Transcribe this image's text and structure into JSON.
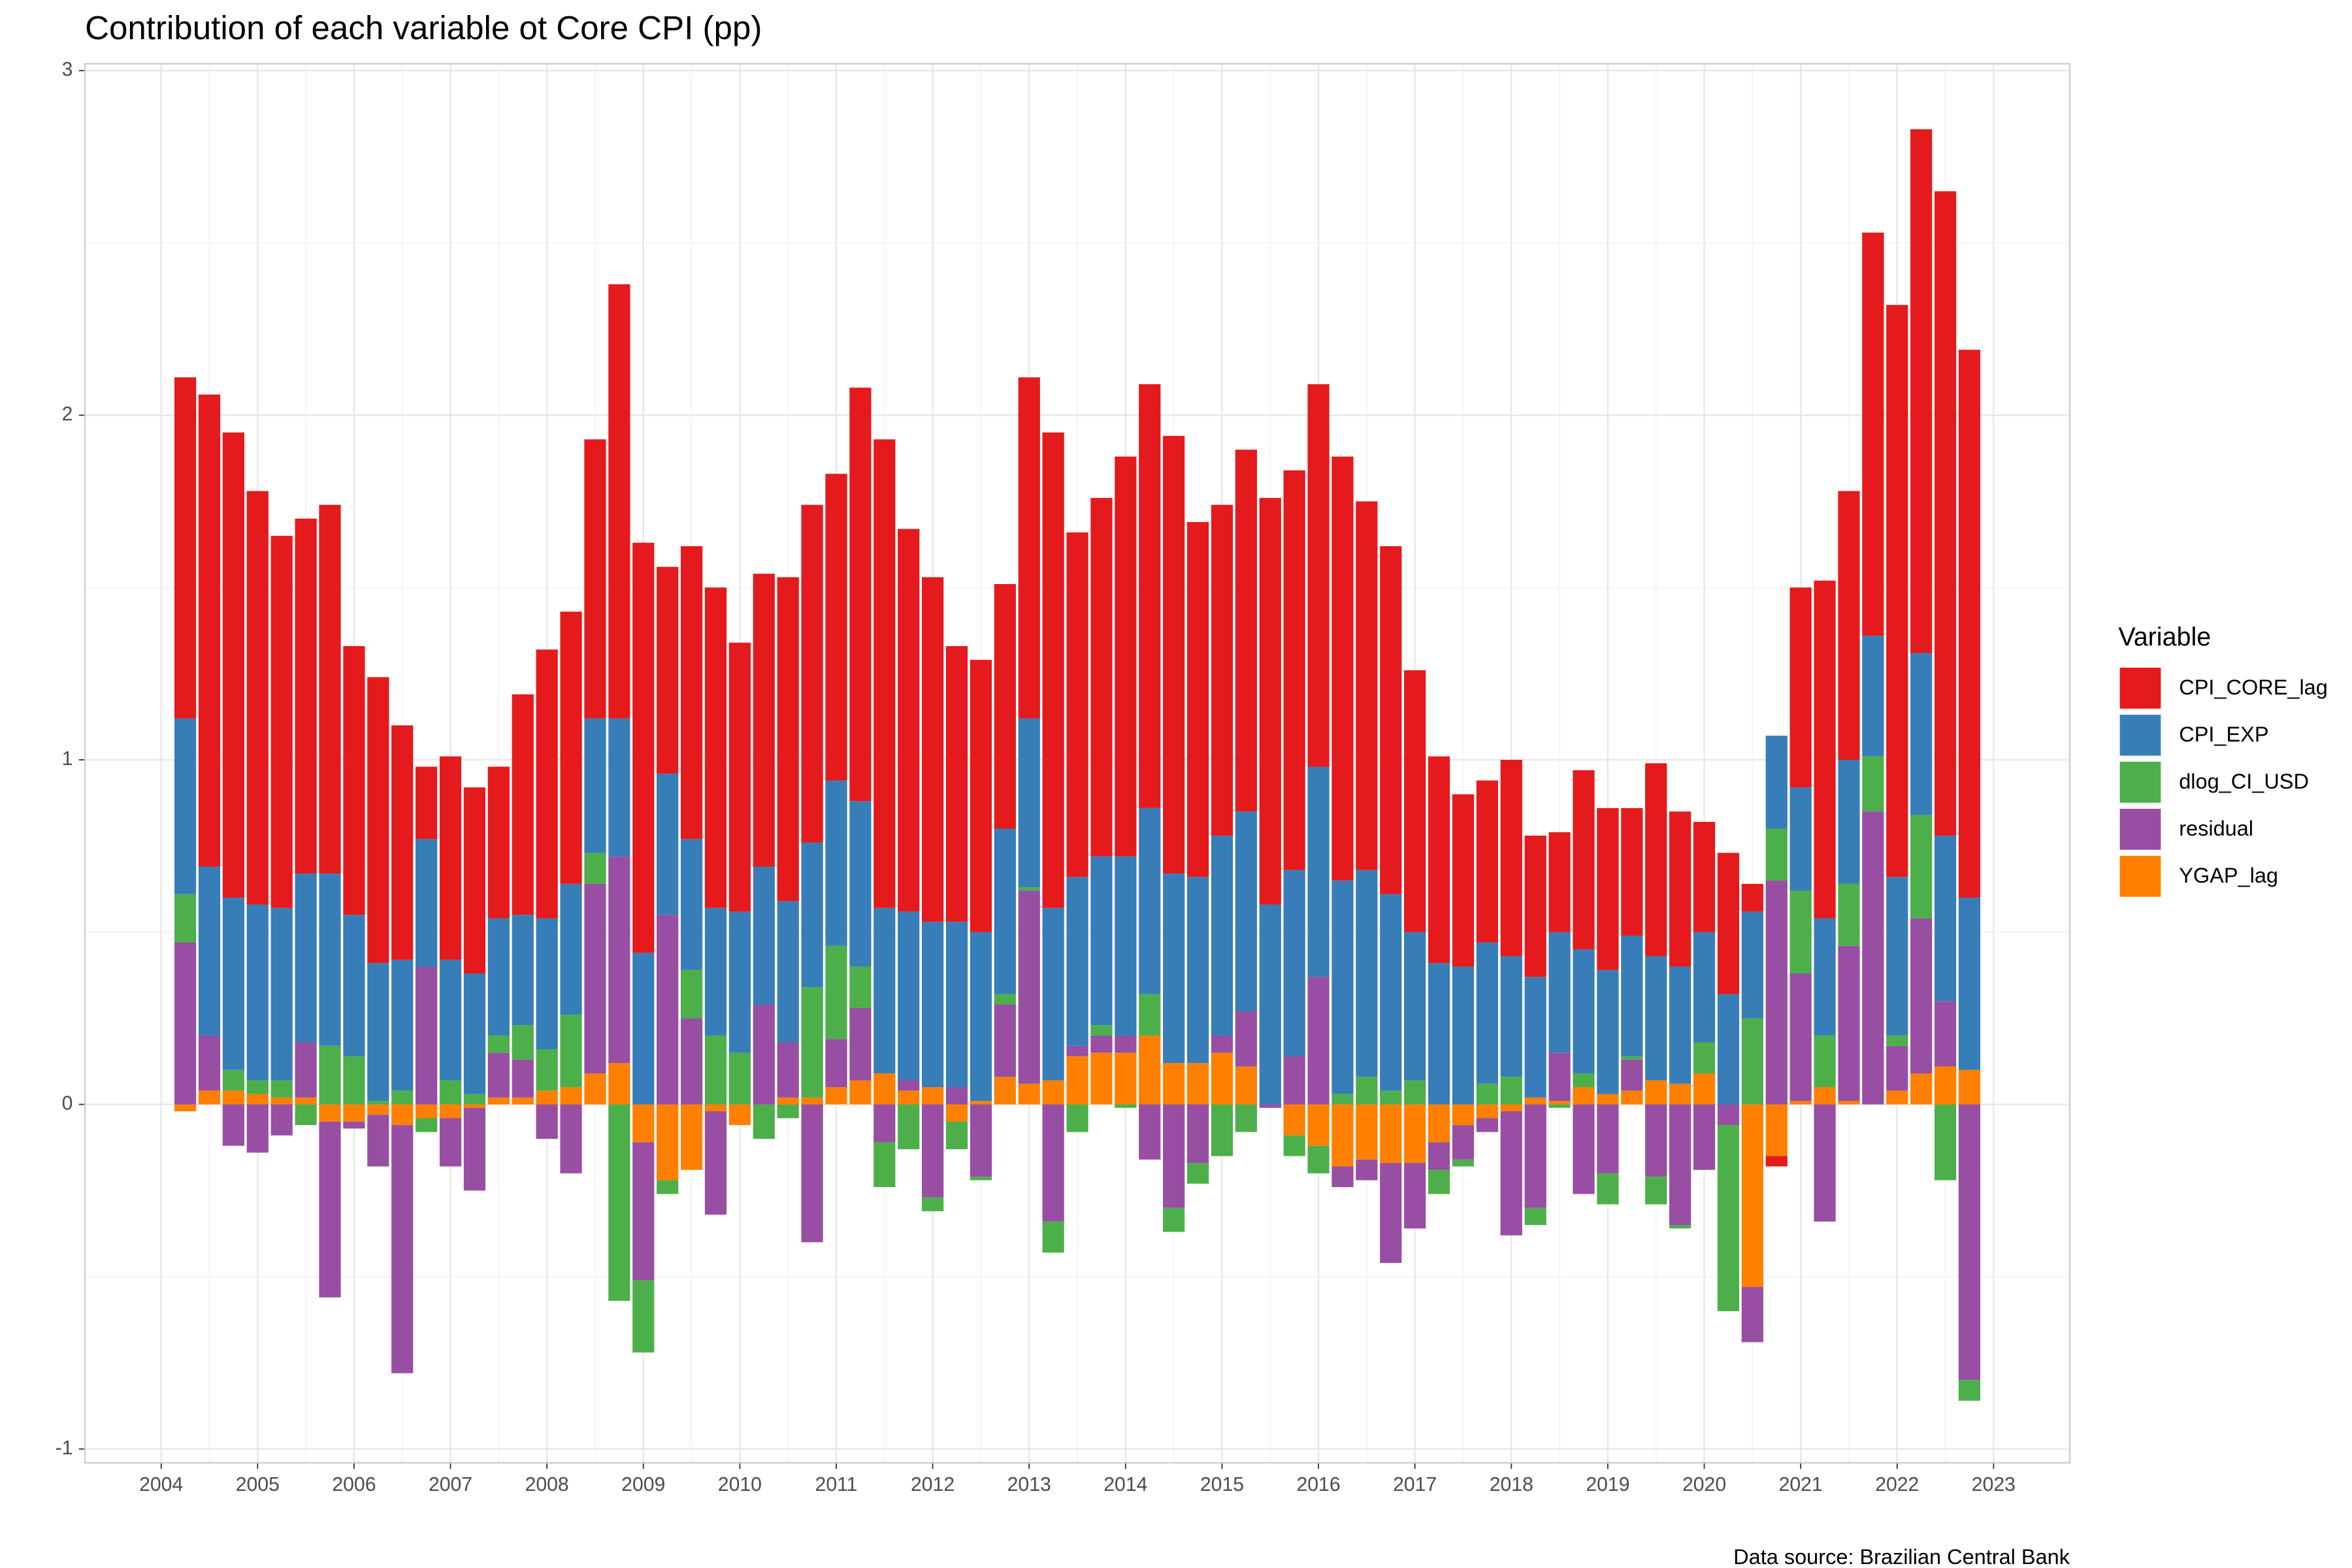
{
  "chart_data": {
    "type": "stacked_bar",
    "title": "Contribution of each variable ot Core CPI (pp)",
    "legend_title": "Variable",
    "caption": "Data source: Brazilian Central Bank",
    "x": [
      2004.25,
      2004.5,
      2004.75,
      2005,
      2005.25,
      2005.5,
      2005.75,
      2006,
      2006.25,
      2006.5,
      2006.75,
      2007,
      2007.25,
      2007.5,
      2007.75,
      2008,
      2008.25,
      2008.5,
      2008.75,
      2009,
      2009.25,
      2009.5,
      2009.75,
      2010,
      2010.25,
      2010.5,
      2010.75,
      2011,
      2011.25,
      2011.5,
      2011.75,
      2012,
      2012.25,
      2012.5,
      2012.75,
      2013,
      2013.25,
      2013.5,
      2013.75,
      2014,
      2014.25,
      2014.5,
      2014.75,
      2015,
      2015.25,
      2015.5,
      2015.75,
      2016,
      2016.25,
      2016.5,
      2016.75,
      2017,
      2017.25,
      2017.5,
      2017.75,
      2018,
      2018.25,
      2018.5,
      2018.75,
      2019,
      2019.25,
      2019.5,
      2019.75,
      2020,
      2020.25,
      2020.5,
      2020.75,
      2021,
      2021.25,
      2021.5,
      2021.75,
      2022,
      2022.25,
      2022.5,
      2022.75
    ],
    "series": [
      {
        "name": "CPI_CORE_lag",
        "color": "#e41a1c",
        "values": [
          0.99,
          1.37,
          1.35,
          1.2,
          1.08,
          1.03,
          1.07,
          0.78,
          0.83,
          0.68,
          0.21,
          0.59,
          0.54,
          0.44,
          0.64,
          0.78,
          0.79,
          0.81,
          1.26,
          1.19,
          0.6,
          0.85,
          0.93,
          0.78,
          0.85,
          0.94,
          0.98,
          0.89,
          1.2,
          1.36,
          1.11,
          1.0,
          0.8,
          0.79,
          0.71,
          0.99,
          1.38,
          1.0,
          1.04,
          1.16,
          1.23,
          1.27,
          1.03,
          0.96,
          1.05,
          1.18,
          1.16,
          1.11,
          1.23,
          1.07,
          1.01,
          0.76,
          0.6,
          0.5,
          0.47,
          0.57,
          0.41,
          0.29,
          0.52,
          0.47,
          0.37,
          0.56,
          0.45,
          0.32,
          0.41,
          0.08,
          -0.03,
          0.58,
          0.98,
          0.78,
          1.17,
          1.66,
          1.52,
          1.87,
          1.59
        ]
      },
      {
        "name": "CPI_EXP",
        "color": "#377eb8",
        "values": [
          0.51,
          0.49,
          0.5,
          0.51,
          0.5,
          0.49,
          0.5,
          0.41,
          0.4,
          0.38,
          0.37,
          0.35,
          0.35,
          0.34,
          0.32,
          0.38,
          0.38,
          0.39,
          0.4,
          0.44,
          0.41,
          0.38,
          0.37,
          0.41,
          0.4,
          0.41,
          0.42,
          0.48,
          0.48,
          0.48,
          0.49,
          0.48,
          0.48,
          0.49,
          0.48,
          0.49,
          0.5,
          0.49,
          0.49,
          0.52,
          0.54,
          0.55,
          0.54,
          0.58,
          0.58,
          0.58,
          0.54,
          0.61,
          0.62,
          0.6,
          0.57,
          0.43,
          0.41,
          0.4,
          0.41,
          0.35,
          0.35,
          0.35,
          0.36,
          0.36,
          0.35,
          0.36,
          0.34,
          0.32,
          0.32,
          0.31,
          0.27,
          0.3,
          0.34,
          0.36,
          0.35,
          0.46,
          0.47,
          0.48,
          0.5
        ]
      },
      {
        "name": "dlog_CI_USD",
        "color": "#4daf4a",
        "values": [
          0.14,
          0,
          0.06,
          0.04,
          0.05,
          -0.06,
          0.17,
          0.14,
          0.01,
          0.04,
          -0.04,
          0.07,
          0.03,
          0.05,
          0.1,
          0.12,
          0.21,
          0.09,
          -0.57,
          -0.21,
          -0.04,
          0.14,
          0.2,
          0.15,
          -0.1,
          -0.04,
          0.32,
          0.27,
          0.12,
          -0.13,
          -0.13,
          -0.04,
          -0.08,
          -0.01,
          0.03,
          0.01,
          -0.09,
          -0.08,
          0.03,
          -0.01,
          0.12,
          -0.07,
          -0.06,
          -0.15,
          -0.08,
          0,
          -0.06,
          -0.08,
          0.03,
          0.08,
          0.04,
          0.07,
          -0.07,
          -0.02,
          0.06,
          0.08,
          -0.05,
          -0.01,
          0.04,
          -0.09,
          0.01,
          -0.08,
          -0.01,
          0.09,
          -0.54,
          0.25,
          0.15,
          0.24,
          0.15,
          0.18,
          0.16,
          0.03,
          0.3,
          -0.22,
          -0.06
        ]
      },
      {
        "name": "residual",
        "color": "#984ea3",
        "values": [
          0.47,
          0.16,
          -0.12,
          -0.14,
          -0.09,
          0.16,
          -0.51,
          -0.02,
          -0.15,
          -0.72,
          0.4,
          -0.14,
          -0.24,
          0.13,
          0.11,
          -0.1,
          -0.2,
          0.55,
          0.6,
          -0.4,
          0.55,
          0.25,
          -0.3,
          0,
          0.29,
          0.16,
          -0.4,
          0.14,
          0.21,
          -0.11,
          0.03,
          -0.27,
          0.05,
          -0.21,
          0.21,
          0.56,
          -0.34,
          0.03,
          0.05,
          0.05,
          -0.16,
          -0.3,
          -0.17,
          0.05,
          0.16,
          -0.01,
          0.14,
          0.37,
          -0.06,
          -0.06,
          -0.29,
          -0.19,
          -0.08,
          -0.1,
          -0.04,
          -0.36,
          -0.3,
          0.14,
          -0.26,
          -0.2,
          0.09,
          -0.21,
          -0.35,
          -0.19,
          -0.06,
          -0.16,
          0.65,
          0.37,
          -0.34,
          0.45,
          0.85,
          0.13,
          0.45,
          0.19,
          -0.8
        ]
      },
      {
        "name": "YGAP_lag",
        "color": "#ff7f00",
        "values": [
          -0.02,
          0.04,
          0.04,
          0.03,
          0.02,
          0.02,
          -0.05,
          -0.05,
          -0.03,
          -0.06,
          -0.04,
          -0.04,
          -0.01,
          0.02,
          0.02,
          0.04,
          0.05,
          0.09,
          0.12,
          -0.11,
          -0.22,
          -0.19,
          -0.02,
          -0.06,
          0,
          0.02,
          0.02,
          0.05,
          0.07,
          0.09,
          0.04,
          0.05,
          -0.05,
          0.01,
          0.08,
          0.06,
          0.07,
          0.14,
          0.15,
          0.15,
          0.2,
          0.12,
          0.12,
          0.15,
          0.11,
          0,
          -0.09,
          -0.12,
          -0.18,
          -0.16,
          -0.17,
          -0.17,
          -0.11,
          -0.06,
          -0.04,
          -0.02,
          0.02,
          0.01,
          0.05,
          0.03,
          0.04,
          0.07,
          0.06,
          0.09,
          0,
          -0.53,
          -0.15,
          0.01,
          0.05,
          0.01,
          0,
          0.04,
          0.09,
          0.11,
          0.1
        ]
      }
    ],
    "xlim": [
      2003.21,
      2023.79
    ],
    "xticks": [
      2004,
      2005,
      2006,
      2007,
      2008,
      2009,
      2010,
      2011,
      2012,
      2013,
      2014,
      2015,
      2016,
      2017,
      2018,
      2019,
      2020,
      2021,
      2022,
      2023
    ],
    "ylim": [
      -1.04,
      3.02
    ],
    "yticks": [
      -1,
      0,
      1,
      2,
      3
    ],
    "grid": true
  }
}
